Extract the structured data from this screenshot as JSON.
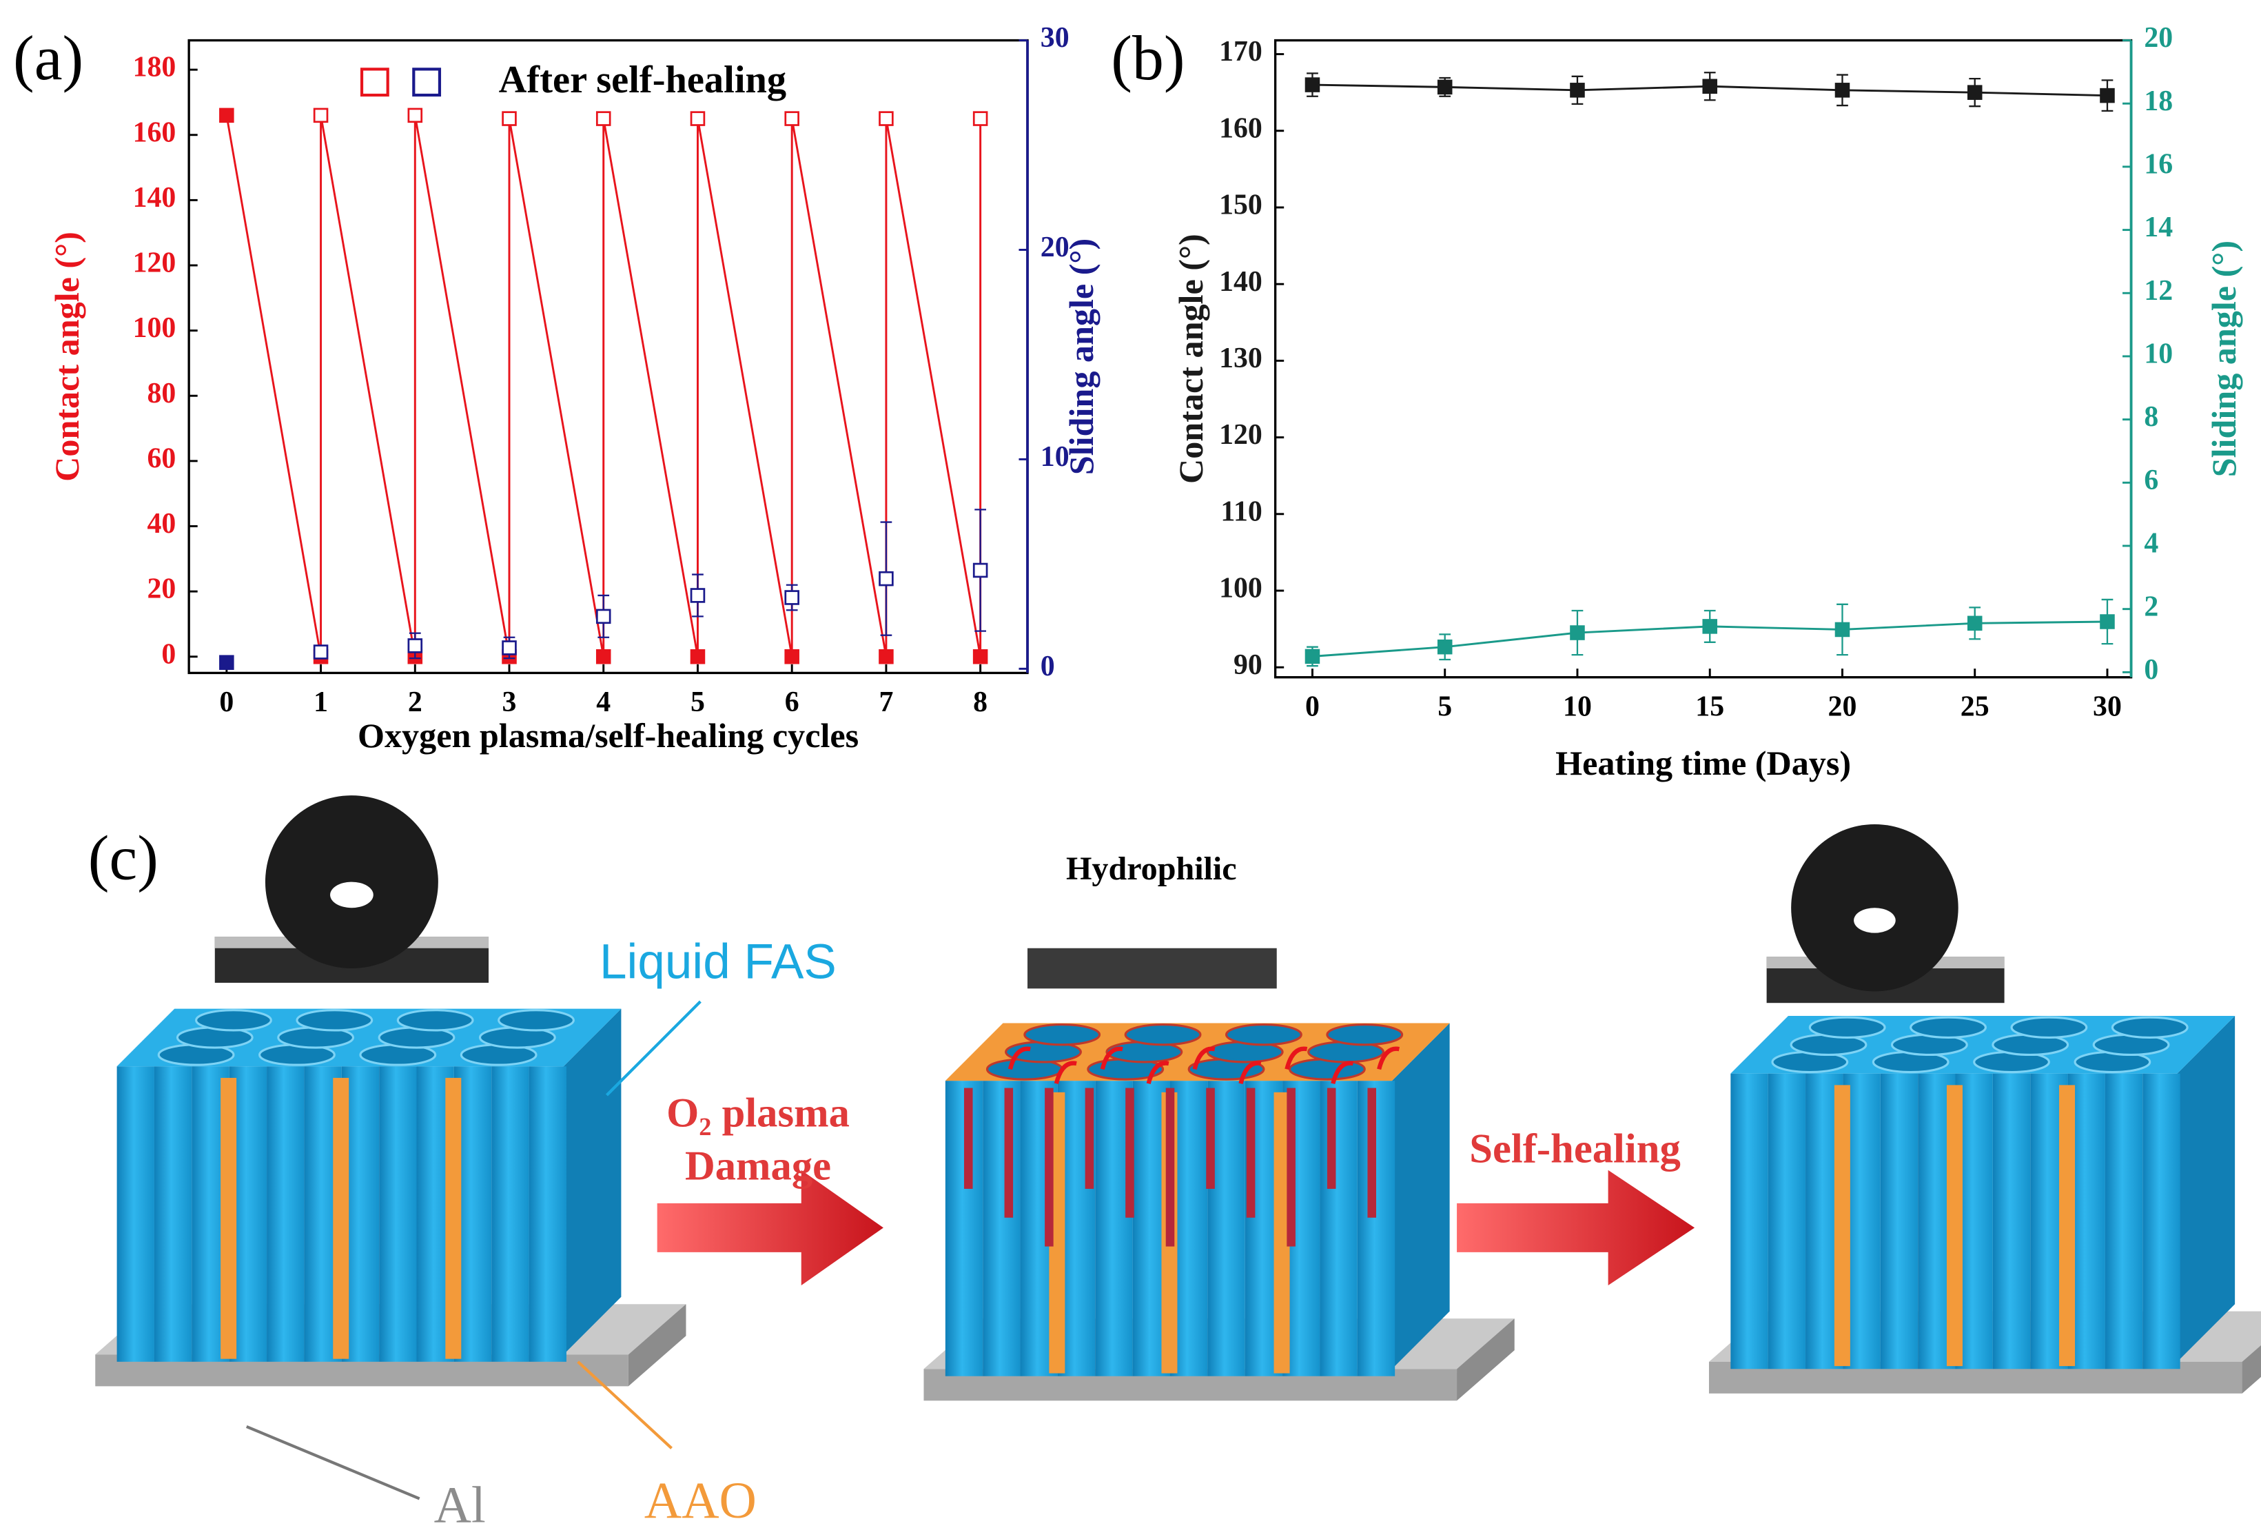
{
  "chart_data": [
    {
      "type": "line",
      "panel": "(a)",
      "x_label": "Oxygen plasma/self-healing cycles",
      "y_label": "Contact angle (°)",
      "y2_label": "Sliding angle (°)",
      "legend": {
        "label": "After self-healing"
      },
      "xlim": [
        -0.4,
        8.5
      ],
      "ylim": [
        -5,
        189
      ],
      "y2lim": [
        -0.2,
        30
      ],
      "xticks": [
        0,
        1,
        2,
        3,
        4,
        5,
        6,
        7,
        8
      ],
      "yticks": [
        0,
        20,
        40,
        60,
        80,
        100,
        120,
        140,
        160,
        180
      ],
      "y2ticks": [
        0,
        10,
        20,
        30
      ],
      "series": [
        {
          "color": "#e8141c",
          "axis": "y",
          "line": true,
          "x": [
            0,
            1,
            1,
            2,
            2,
            3,
            3,
            4,
            4,
            5,
            5,
            6,
            6,
            7,
            7,
            8,
            8
          ],
          "values": [
            166,
            0,
            166,
            0,
            166,
            0,
            165,
            0,
            165,
            0,
            165,
            0,
            165,
            0,
            165,
            0,
            165
          ],
          "open": [
            false,
            false,
            true,
            false,
            true,
            false,
            true,
            false,
            true,
            false,
            true,
            false,
            true,
            false,
            true,
            false,
            true
          ]
        },
        {
          "color": "#1a1a8c",
          "axis": "y2",
          "line": false,
          "x": [
            0,
            1,
            2,
            3,
            4,
            5,
            6,
            7,
            8
          ],
          "values": [
            0.3,
            0.8,
            1.1,
            1.0,
            2.5,
            3.5,
            3.4,
            4.3,
            4.7
          ],
          "errors": [
            0,
            0.3,
            0.6,
            0.5,
            1.0,
            1.0,
            0.6,
            2.7,
            2.9
          ],
          "open": [
            false,
            true,
            true,
            true,
            true,
            true,
            true,
            true,
            true
          ]
        }
      ]
    },
    {
      "type": "line",
      "panel": "(b)",
      "x_label": "Heating time (Days)",
      "y_label": "Contact angle (°)",
      "y2_label": "Sliding angle (°)",
      "xlim": [
        -1.4,
        30.9
      ],
      "ylim": [
        88.7,
        171.8
      ],
      "y2lim": [
        -0.16,
        20
      ],
      "xticks": [
        0,
        5,
        10,
        15,
        20,
        25,
        30
      ],
      "yticks": [
        90,
        100,
        110,
        120,
        130,
        140,
        150,
        160,
        170
      ],
      "y2ticks": [
        0,
        2,
        4,
        6,
        8,
        10,
        12,
        14,
        16,
        18,
        20
      ],
      "x": [
        0,
        5,
        10,
        15,
        20,
        25,
        30
      ],
      "series": [
        {
          "color": "#1a1a1a",
          "axis": "y",
          "line": true,
          "values": [
            166,
            165.7,
            165.3,
            165.8,
            165.3,
            165,
            164.6
          ],
          "errors": [
            1.5,
            1.2,
            1.8,
            1.8,
            2,
            1.8,
            2
          ]
        },
        {
          "color": "#1a9a8a",
          "axis": "y2",
          "line": true,
          "values": [
            0.5,
            0.8,
            1.25,
            1.45,
            1.35,
            1.55,
            1.6
          ],
          "errors": [
            0.3,
            0.4,
            0.7,
            0.5,
            0.8,
            0.5,
            0.7
          ]
        }
      ]
    }
  ],
  "diagram": {
    "panel": "(c)",
    "hydrophilic": "Hydrophilic",
    "liquid_fas": "Liquid FAS",
    "o2_plasma": "O₂ plasma",
    "damage": "Damage",
    "self_healing": "Self-healing",
    "al": "Al",
    "aao": "AAO"
  }
}
